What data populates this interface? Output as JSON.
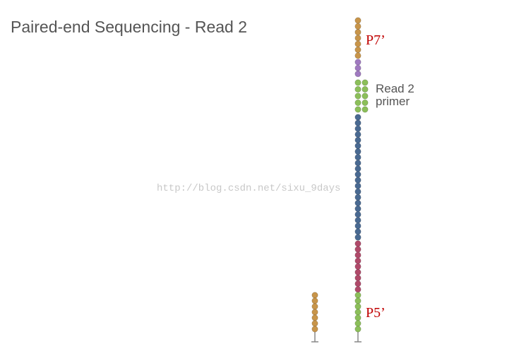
{
  "header": {
    "title": "Paired-end Sequencing  - Read 2"
  },
  "labels": {
    "p7": "P7’",
    "read2_primer": [
      "Read 2",
      "primer"
    ],
    "p5": "P5’"
  },
  "watermark": "http://blog.csdn.net/sixu_9days"
}
